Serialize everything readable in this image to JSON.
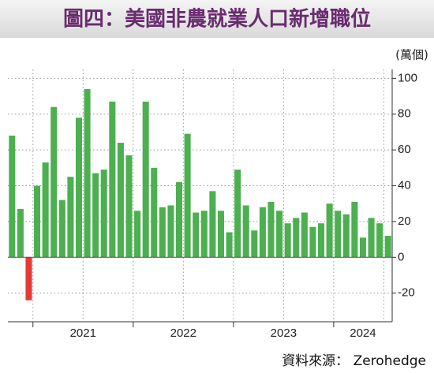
{
  "chart_data": {
    "type": "bar",
    "title": "圖四：美國非農就業人口新增職位",
    "unit_label": "(萬個)",
    "source": "資料來源： Zerohedge",
    "categories": [
      null,
      null,
      null,
      "2021",
      null,
      null,
      null,
      null,
      null,
      null,
      null,
      null,
      null,
      null,
      null,
      "2022",
      null,
      null,
      null,
      null,
      null,
      null,
      null,
      null,
      null,
      null,
      null,
      "2023",
      null,
      null,
      null,
      null,
      null,
      null,
      null,
      null,
      null,
      null,
      null,
      "2024",
      null,
      null,
      null,
      null,
      null,
      null
    ],
    "values": [
      68,
      27,
      -24,
      40,
      53,
      84,
      32,
      45,
      78,
      94,
      47,
      49,
      87,
      64,
      57,
      26,
      87,
      50,
      28,
      29,
      42,
      69,
      25,
      26,
      37,
      26,
      14,
      49,
      29,
      15,
      28,
      31,
      26,
      19,
      22,
      25,
      17,
      19,
      30,
      26,
      24,
      31,
      11,
      22,
      19,
      12
    ],
    "color": "#4caf50",
    "negative_color": "#e53935",
    "ylim": [
      -36,
      105
    ],
    "yticks": [
      -20,
      0,
      20,
      40,
      60,
      80,
      100
    ],
    "grid": true
  }
}
